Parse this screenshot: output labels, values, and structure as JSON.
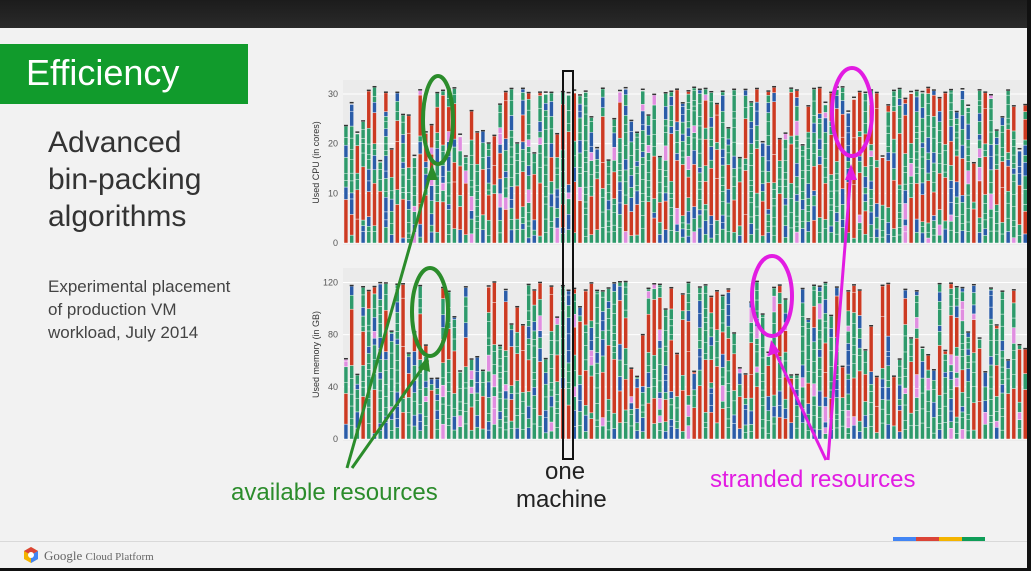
{
  "slide": {
    "title": "Efficiency",
    "heading_lines": [
      "Advanced",
      "bin-packing",
      "algorithms"
    ],
    "subtitle_lines": [
      "Experimental placement",
      "of production VM",
      "workload, July 2014"
    ]
  },
  "footer": {
    "brand": "Google",
    "product": "Cloud Platform"
  },
  "annotations": {
    "available": "available resources",
    "machine_line1": "one",
    "machine_line2": "machine",
    "stranded": "stranded resources"
  },
  "colors": {
    "brand_green": "#119b2c",
    "seg_green": "#2e9a6b",
    "seg_blue": "#2a5ca8",
    "seg_red": "#cc3a22",
    "seg_pink": "#e08ee0",
    "annot_green": "#2b8c2b",
    "annot_magenta": "#e21ce2",
    "google_blue": "#4285f4",
    "google_red": "#db4437",
    "google_yellow": "#f4b400",
    "google_green": "#0f9d58"
  },
  "chart_data": [
    {
      "type": "bar",
      "stacked": true,
      "ylabel": "Used CPU (in cores)",
      "ylim": [
        0,
        32
      ],
      "yticks": [
        0,
        10,
        20,
        30
      ],
      "grid": true,
      "n_machines": 120
    },
    {
      "type": "bar",
      "stacked": true,
      "ylabel": "Used memory (in GB)",
      "ylim": [
        0,
        128
      ],
      "yticks": [
        0,
        40,
        80,
        120
      ],
      "grid": true,
      "n_machines": 120
    }
  ]
}
